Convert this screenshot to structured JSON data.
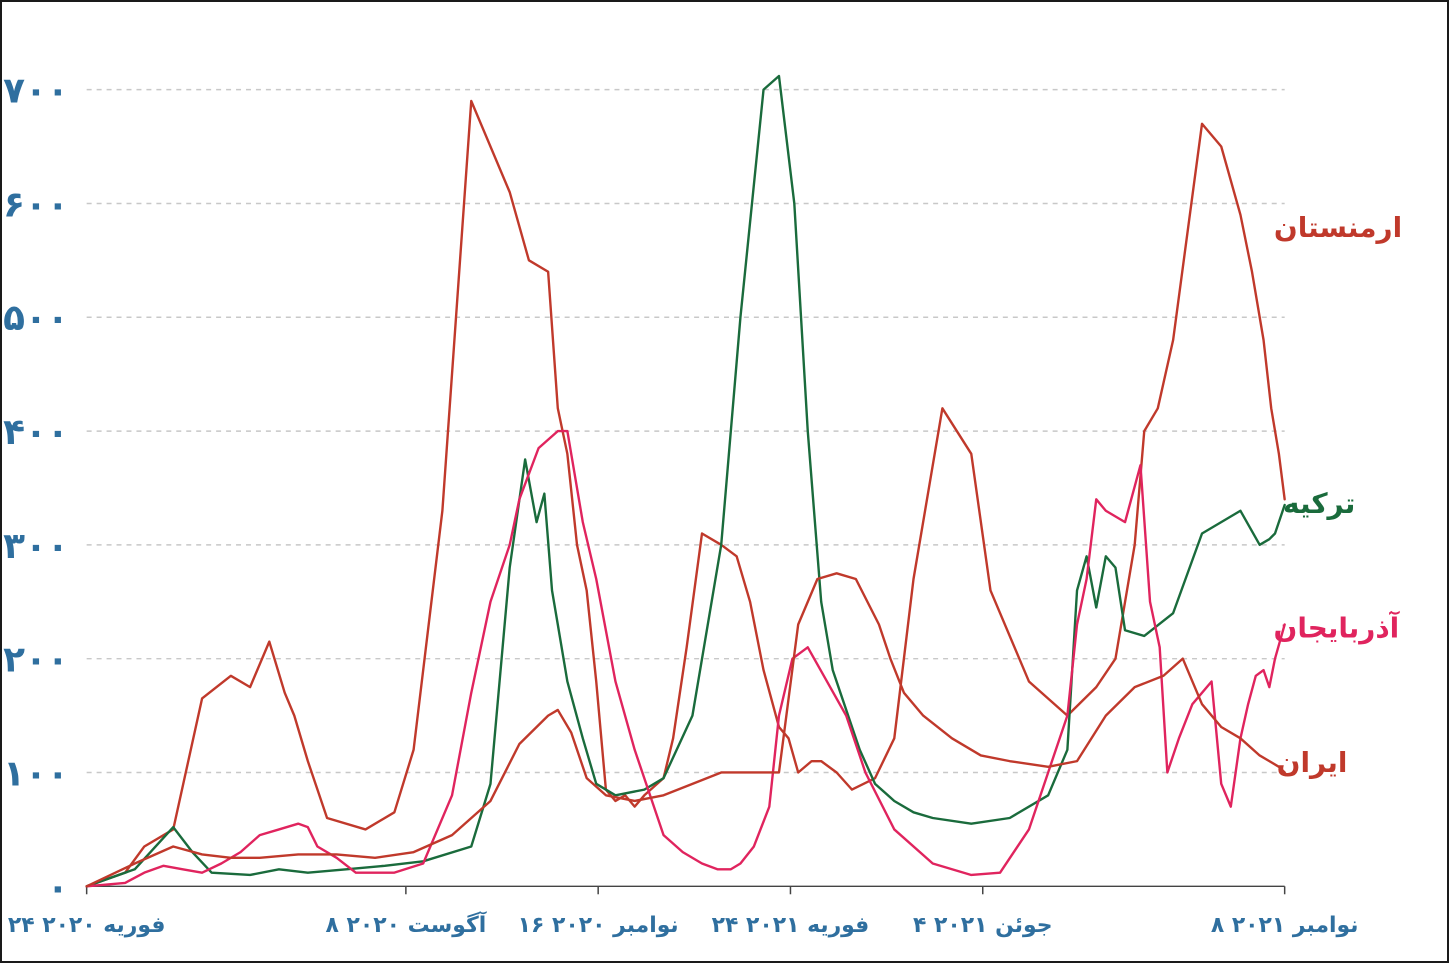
{
  "chart_data": {
    "type": "line",
    "title": "",
    "xlabel": "",
    "ylabel": "",
    "ylim": [
      0,
      700
    ],
    "yticks": [
      0,
      100,
      200,
      300,
      400,
      500,
      600,
      700
    ],
    "ytick_labels": [
      "۰",
      "۱۰۰",
      "۲۰۰",
      "۳۰۰",
      "۴۰۰",
      "۵۰۰",
      "۶۰۰",
      "۷۰۰"
    ],
    "grid": true,
    "x_unit": "days since 2020-02-24",
    "xlim": [
      0,
      623
    ],
    "xticks": [
      {
        "x": 0,
        "label": "۲۴ فوریه ۲۰۲۰"
      },
      {
        "x": 166,
        "label": "۸ آگوست ۲۰۲۰"
      },
      {
        "x": 266,
        "label": "۱۶ نوامبر ۲۰۲۰"
      },
      {
        "x": 366,
        "label": "۲۴ فوریه ۲۰۲۱"
      },
      {
        "x": 466,
        "label": "۴ جوئن ۲۰۲۱"
      },
      {
        "x": 623,
        "label": "۸ نوامبر ۲۰۲۱"
      }
    ],
    "series": [
      {
        "name": "ارمنستان",
        "color": "#c0392b",
        "x": [
          0,
          20,
          30,
          45,
          60,
          75,
          85,
          95,
          103,
          108,
          115,
          125,
          145,
          160,
          170,
          185,
          200,
          220,
          230,
          240,
          245,
          250,
          255,
          260,
          265,
          270,
          275,
          280,
          285,
          290,
          300,
          305,
          312,
          320,
          330,
          338,
          345,
          352,
          360,
          365,
          370,
          377,
          382,
          390,
          398,
          410,
          420,
          430,
          445,
          460,
          470,
          490,
          510,
          525,
          535,
          545,
          550,
          557,
          565,
          580,
          590,
          600,
          606,
          612,
          616,
          620,
          623
        ],
        "values": [
          0,
          12,
          35,
          50,
          165,
          185,
          175,
          215,
          170,
          150,
          110,
          60,
          50,
          65,
          120,
          330,
          690,
          610,
          550,
          540,
          420,
          380,
          300,
          260,
          180,
          85,
          75,
          80,
          70,
          80,
          95,
          130,
          210,
          310,
          300,
          290,
          250,
          190,
          140,
          130,
          100,
          110,
          110,
          100,
          85,
          95,
          130,
          270,
          420,
          380,
          260,
          180,
          150,
          175,
          200,
          300,
          400,
          420,
          480,
          670,
          650,
          590,
          540,
          480,
          420,
          380,
          340
        ]
      },
      {
        "name": "ترکیه",
        "color": "#1a6b3c",
        "x": [
          0,
          25,
          45,
          55,
          65,
          85,
          100,
          115,
          135,
          155,
          175,
          200,
          210,
          220,
          228,
          234,
          238,
          242,
          245,
          250,
          258,
          265,
          275,
          290,
          300,
          315,
          330,
          340,
          352,
          360,
          368,
          375,
          382,
          388,
          392,
          402,
          410,
          420,
          430,
          440,
          460,
          480,
          500,
          510,
          515,
          520,
          525,
          530,
          535,
          540,
          550,
          565,
          580,
          590,
          600,
          610,
          615,
          618,
          623
        ],
        "values": [
          0,
          15,
          52,
          30,
          12,
          10,
          15,
          12,
          15,
          18,
          22,
          35,
          90,
          280,
          375,
          320,
          345,
          260,
          230,
          180,
          130,
          90,
          80,
          85,
          95,
          150,
          300,
          500,
          700,
          712,
          600,
          400,
          250,
          190,
          170,
          120,
          90,
          75,
          65,
          60,
          55,
          60,
          80,
          120,
          260,
          290,
          245,
          290,
          280,
          225,
          220,
          240,
          310,
          320,
          330,
          300,
          305,
          310,
          335
        ]
      },
      {
        "name": "آذربایجان",
        "color": "#e0245e",
        "x": [
          0,
          20,
          30,
          40,
          50,
          60,
          70,
          80,
          90,
          100,
          110,
          115,
          120,
          130,
          140,
          160,
          175,
          190,
          200,
          210,
          220,
          225,
          235,
          245,
          250,
          258,
          265,
          275,
          285,
          300,
          310,
          320,
          328,
          335,
          340,
          347,
          355,
          360,
          367,
          375,
          385,
          395,
          405,
          420,
          440,
          460,
          475,
          490,
          500,
          510,
          515,
          520,
          525,
          530,
          540,
          548,
          553,
          558,
          562,
          568,
          575,
          585,
          590,
          595,
          600,
          604,
          608,
          612,
          615,
          618,
          623
        ],
        "values": [
          0,
          3,
          12,
          18,
          15,
          12,
          20,
          30,
          45,
          50,
          55,
          52,
          35,
          25,
          12,
          12,
          20,
          80,
          170,
          250,
          300,
          340,
          385,
          400,
          400,
          320,
          270,
          180,
          120,
          45,
          30,
          20,
          15,
          15,
          20,
          35,
          70,
          150,
          200,
          210,
          180,
          150,
          100,
          50,
          20,
          10,
          12,
          50,
          100,
          150,
          230,
          270,
          340,
          330,
          320,
          370,
          250,
          210,
          100,
          130,
          160,
          180,
          90,
          70,
          130,
          160,
          185,
          190,
          175,
          200,
          230
        ]
      },
      {
        "name": "ایران",
        "color": "#c0392b",
        "x": [
          0,
          25,
          45,
          60,
          75,
          90,
          110,
          130,
          150,
          170,
          190,
          210,
          225,
          240,
          245,
          252,
          260,
          270,
          285,
          300,
          315,
          330,
          345,
          360,
          370,
          380,
          390,
          400,
          412,
          418,
          425,
          435,
          450,
          465,
          480,
          500,
          515,
          530,
          545,
          560,
          570,
          580,
          590,
          600,
          610,
          615,
          620,
          623
        ],
        "values": [
          0,
          20,
          35,
          28,
          25,
          25,
          28,
          28,
          25,
          30,
          45,
          75,
          125,
          150,
          155,
          135,
          95,
          80,
          75,
          80,
          90,
          100,
          100,
          100,
          230,
          270,
          275,
          270,
          230,
          200,
          170,
          150,
          130,
          115,
          110,
          105,
          110,
          150,
          175,
          185,
          200,
          160,
          140,
          130,
          115,
          110,
          105,
          100
        ]
      }
    ],
    "labels": {
      "armenia": "ارمنستان",
      "turkey": "ترکیه",
      "azerbaijan": "آذربایجان",
      "iran": "ایران"
    }
  }
}
